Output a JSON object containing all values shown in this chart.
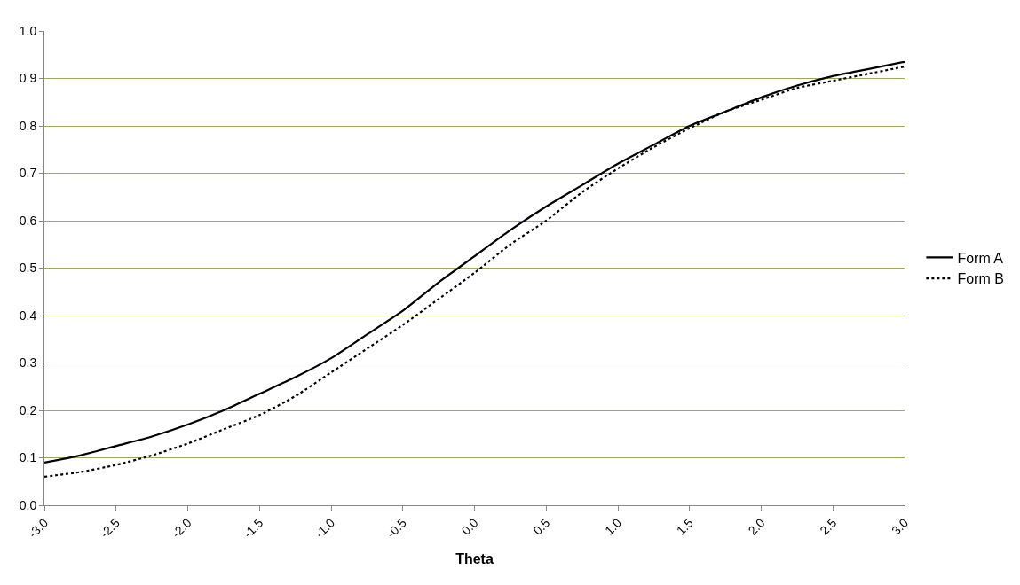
{
  "chart_data": {
    "type": "line",
    "xlabel": "Theta",
    "x": [
      -3,
      -2.75,
      -2.5,
      -2.25,
      -2,
      -1.75,
      -1.5,
      -1.25,
      -1,
      -0.75,
      -0.5,
      -0.25,
      0,
      0.25,
      0.5,
      0.75,
      1,
      1.25,
      1.5,
      1.75,
      2,
      2.25,
      2.5,
      2.75,
      3
    ],
    "series": [
      {
        "name": "Form A",
        "color": "#000000",
        "line_style": "solid",
        "values": [
          0.09,
          0.105,
          0.125,
          0.145,
          0.17,
          0.2,
          0.235,
          0.27,
          0.31,
          0.36,
          0.41,
          0.47,
          0.525,
          0.58,
          0.63,
          0.675,
          0.72,
          0.76,
          0.8,
          0.83,
          0.86,
          0.885,
          0.905,
          0.92,
          0.935
        ]
      },
      {
        "name": "Form B",
        "color": "#000000",
        "line_style": "dotted",
        "values": [
          0.06,
          0.07,
          0.085,
          0.105,
          0.13,
          0.16,
          0.19,
          0.23,
          0.28,
          0.33,
          0.38,
          0.435,
          0.49,
          0.55,
          0.6,
          0.66,
          0.71,
          0.755,
          0.795,
          0.83,
          0.855,
          0.88,
          0.895,
          0.91,
          0.925
        ]
      }
    ],
    "xlim": [
      -3,
      3
    ],
    "xticks": [
      {
        "value": -3,
        "label": "-3.0"
      },
      {
        "value": -2.5,
        "label": "-2.5"
      },
      {
        "value": -2,
        "label": "-2.0"
      },
      {
        "value": -1.5,
        "label": "-1.5"
      },
      {
        "value": -1,
        "label": "-1.0"
      },
      {
        "value": -0.5,
        "label": "-0.5"
      },
      {
        "value": 0,
        "label": "0.0"
      },
      {
        "value": 0.5,
        "label": "0.5"
      },
      {
        "value": 1,
        "label": "1.0"
      },
      {
        "value": 1.5,
        "label": "1.5"
      },
      {
        "value": 2,
        "label": "2.0"
      },
      {
        "value": 2.5,
        "label": "2.5"
      },
      {
        "value": 3,
        "label": "3.0"
      }
    ],
    "ylim": [
      0,
      1
    ],
    "yticks": [
      {
        "value": 0,
        "label": "0.0"
      },
      {
        "value": 0.1,
        "label": "0.1"
      },
      {
        "value": 0.2,
        "label": "0.2"
      },
      {
        "value": 0.3,
        "label": "0.3"
      },
      {
        "value": 0.4,
        "label": "0.4"
      },
      {
        "value": 0.5,
        "label": "0.5"
      },
      {
        "value": 0.6,
        "label": "0.6"
      },
      {
        "value": 0.7,
        "label": "0.7"
      },
      {
        "value": 0.8,
        "label": "0.8"
      },
      {
        "value": 0.9,
        "label": "0.9"
      },
      {
        "value": 1,
        "label": "1.0"
      }
    ],
    "grid": "y",
    "legend": "right",
    "marker": "none"
  }
}
